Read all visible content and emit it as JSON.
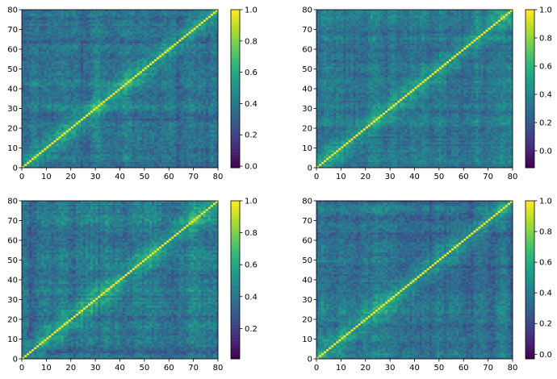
{
  "chart_data": [
    {
      "type": "heatmap",
      "panel": "top-left",
      "description_values": "symmetric 80x80 matrix, diagonal = 1.0",
      "xlim": [
        0,
        80
      ],
      "ylim": [
        0,
        80
      ],
      "xticks": [
        "0",
        "10",
        "20",
        "30",
        "40",
        "50",
        "60",
        "70",
        "80"
      ],
      "yticks": [
        "0",
        "10",
        "20",
        "30",
        "40",
        "50",
        "60",
        "70",
        "80"
      ],
      "colorbar": {
        "min": -0.01,
        "max": 1.0,
        "ticks": [
          "0.0",
          "0.2",
          "0.4",
          "0.6",
          "0.8",
          "1.0"
        ]
      },
      "colormap": "viridis",
      "seed": 11,
      "mean": 0.38
    },
    {
      "type": "heatmap",
      "panel": "top-right",
      "description_values": "symmetric 80x80 matrix, diagonal = 1.0",
      "xlim": [
        0,
        80
      ],
      "ylim": [
        0,
        80
      ],
      "xticks": [
        "0",
        "10",
        "20",
        "30",
        "40",
        "50",
        "60",
        "70",
        "80"
      ],
      "yticks": [
        "0",
        "10",
        "20",
        "30",
        "40",
        "50",
        "60",
        "70",
        "80"
      ],
      "colorbar": {
        "min": -0.12,
        "max": 1.0,
        "ticks": [
          "0.0",
          "0.2",
          "0.4",
          "0.6",
          "0.8",
          "1.0"
        ]
      },
      "colormap": "viridis",
      "seed": 23,
      "mean": 0.32
    },
    {
      "type": "heatmap",
      "panel": "bottom-left",
      "description_values": "symmetric 80x80 matrix, diagonal = 1.0",
      "xlim": [
        0,
        80
      ],
      "ylim": [
        0,
        80
      ],
      "xticks": [
        "0",
        "10",
        "20",
        "30",
        "40",
        "50",
        "60",
        "70",
        "80"
      ],
      "yticks": [
        "0",
        "10",
        "20",
        "30",
        "40",
        "50",
        "60",
        "70",
        "80"
      ],
      "colorbar": {
        "min": 0.01,
        "max": 1.0,
        "ticks": [
          "0.2",
          "0.4",
          "0.6",
          "0.8",
          "1.0"
        ]
      },
      "colormap": "viridis",
      "seed": 37,
      "mean": 0.4
    },
    {
      "type": "heatmap",
      "panel": "bottom-right",
      "description_values": "symmetric 80x80 matrix, diagonal = 1.0",
      "xlim": [
        0,
        80
      ],
      "ylim": [
        0,
        80
      ],
      "xticks": [
        "0",
        "10",
        "20",
        "30",
        "40",
        "50",
        "60",
        "70",
        "80"
      ],
      "yticks": [
        "0",
        "10",
        "20",
        "30",
        "40",
        "50",
        "60",
        "70",
        "80"
      ],
      "colorbar": {
        "min": -0.03,
        "max": 1.0,
        "ticks": [
          "0.0",
          "0.2",
          "0.4",
          "0.6",
          "0.8",
          "1.0"
        ]
      },
      "colormap": "viridis",
      "seed": 51,
      "mean": 0.34
    }
  ]
}
